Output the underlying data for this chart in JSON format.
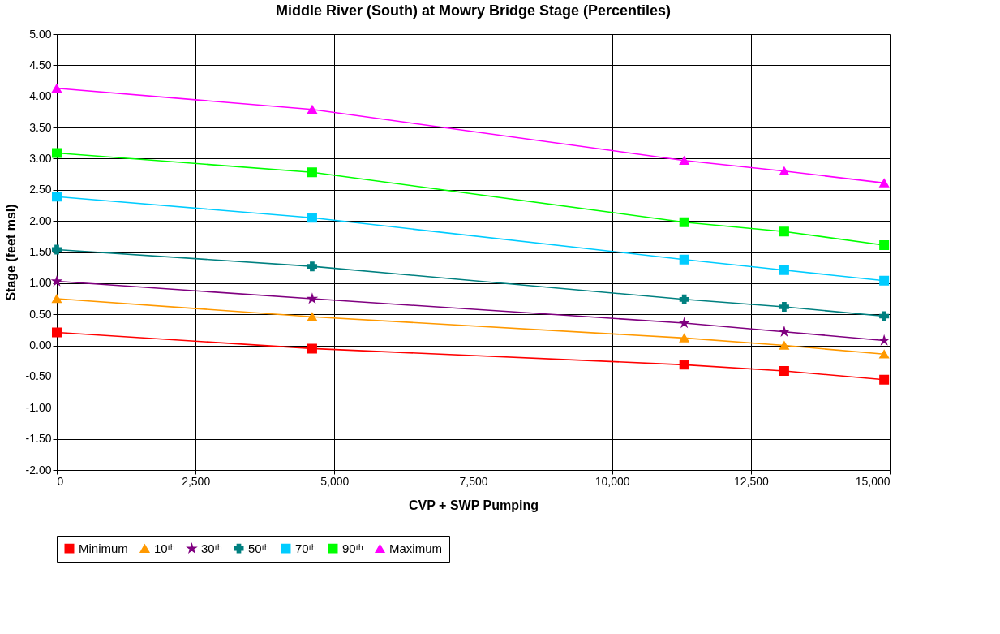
{
  "chart_data": {
    "type": "line",
    "title": "Middle River (South) at Mowry Bridge Stage (Percentiles)",
    "xlabel": "CVP + SWP Pumping",
    "ylabel": "Stage (feet msl)",
    "x": [
      0,
      4600,
      11300,
      13100,
      14900
    ],
    "series": [
      {
        "name": "Minimum",
        "color": "#ff0000",
        "marker": "square",
        "values": [
          0.21,
          -0.05,
          -0.31,
          -0.41,
          -0.55
        ]
      },
      {
        "name": "10ᵗʰ",
        "color": "#ff9900",
        "marker": "triangle",
        "values": [
          0.75,
          0.46,
          0.12,
          0.0,
          -0.14
        ]
      },
      {
        "name": "30ᵗʰ",
        "color": "#800080",
        "marker": "star",
        "values": [
          1.03,
          0.75,
          0.36,
          0.22,
          0.08
        ]
      },
      {
        "name": "50ᵗʰ",
        "color": "#008080",
        "marker": "cross",
        "values": [
          1.54,
          1.27,
          0.74,
          0.62,
          0.47
        ]
      },
      {
        "name": "70ᵗʰ",
        "color": "#00ccff",
        "marker": "square",
        "values": [
          2.39,
          2.05,
          1.38,
          1.21,
          1.04
        ]
      },
      {
        "name": "90ᵗʰ",
        "color": "#00ff00",
        "marker": "square",
        "values": [
          3.09,
          2.78,
          1.98,
          1.83,
          1.61
        ]
      },
      {
        "name": "Maximum",
        "color": "#ff00ff",
        "marker": "triangle",
        "values": [
          4.13,
          3.79,
          2.97,
          2.8,
          2.61
        ]
      }
    ],
    "xlim": [
      0,
      15000
    ],
    "xticks": [
      0,
      {
        "value": 2500,
        "label": "2,500"
      },
      {
        "value": 5000,
        "label": "5,000"
      },
      {
        "value": 7500,
        "label": "7,500"
      },
      {
        "value": 10000,
        "label": "10,000"
      },
      {
        "value": 12500,
        "label": "12,500"
      },
      {
        "value": 15000,
        "label": "15,000"
      }
    ],
    "ylim": [
      -2,
      5
    ],
    "yticks": [
      {
        "value": -2,
        "label": "-2.00"
      },
      {
        "value": -1.5,
        "label": "-1.50"
      },
      {
        "value": -1,
        "label": "-1.00"
      },
      {
        "value": -0.5,
        "label": "-0.50"
      },
      {
        "value": 0,
        "label": "0.00"
      },
      {
        "value": 0.5,
        "label": "0.50"
      },
      {
        "value": 1,
        "label": "1.00"
      },
      {
        "value": 1.5,
        "label": "1.50"
      },
      {
        "value": 2,
        "label": "2.00"
      },
      {
        "value": 2.5,
        "label": "2.50"
      },
      {
        "value": 3,
        "label": "3.00"
      },
      {
        "value": 3.5,
        "label": "3.50"
      },
      {
        "value": 4,
        "label": "4.00"
      },
      {
        "value": 4.5,
        "label": "4.50"
      },
      {
        "value": 5,
        "label": "5.00"
      }
    ],
    "grid": true,
    "legend": "bottom",
    "line_style": "solid"
  }
}
